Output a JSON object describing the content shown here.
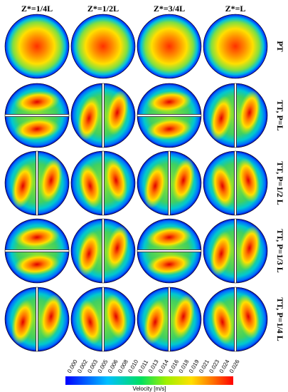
{
  "columns": [
    "Z*=1/4L",
    "Z*=1/2L",
    "Z*=3/4L",
    "Z*=L"
  ],
  "rows": [
    "PT",
    "TT, P=L",
    "TT, P=1/2 L",
    "TT, P=1/3 L",
    "TT, P=1/4 L"
  ],
  "colorbar": {
    "title": "Velocity [m/s]",
    "ticks": [
      "0.000",
      "0.002",
      "0.003",
      "0.005",
      "0.006",
      "0.008",
      "0.010",
      "0.011",
      "0.013",
      "0.014",
      "0.016",
      "0.018",
      "0.019",
      "0.021",
      "0.023",
      "0.024",
      "0.026"
    ]
  }
}
